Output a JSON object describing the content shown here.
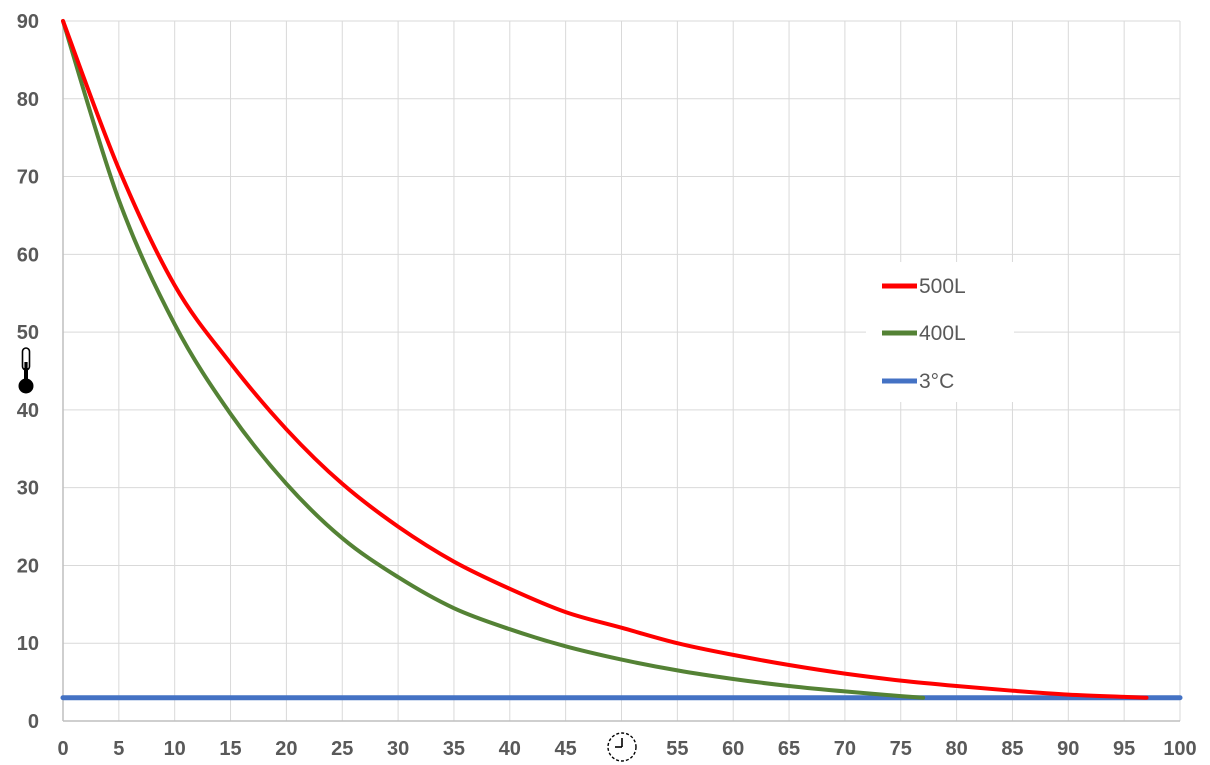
{
  "chart_data": {
    "type": "line",
    "title": "",
    "xlabel_icon": "clock-icon",
    "ylabel_icon": "thermometer-icon",
    "xlim": [
      0,
      100
    ],
    "ylim": [
      0,
      90
    ],
    "x_ticks": [
      "0",
      "5",
      "10",
      "15",
      "20",
      "25",
      "30",
      "35",
      "40",
      "45",
      "",
      "55",
      "60",
      "65",
      "70",
      "75",
      "80",
      "85",
      "90",
      "95",
      "100"
    ],
    "y_ticks": [
      "0",
      "10",
      "20",
      "30",
      "40",
      "50",
      "60",
      "70",
      "80",
      "90"
    ],
    "grid": true,
    "legend_position": "center-right",
    "series": [
      {
        "name": "500L",
        "color": "#ff0000",
        "x": [
          0,
          5,
          10,
          15,
          20,
          25,
          30,
          35,
          40,
          45,
          50,
          55,
          60,
          65,
          70,
          75,
          80,
          85,
          90,
          95,
          97
        ],
        "y": [
          90,
          71,
          56,
          46,
          37.5,
          30.5,
          25,
          20.5,
          17,
          14,
          12,
          10,
          8.5,
          7.2,
          6.1,
          5.2,
          4.5,
          3.9,
          3.4,
          3.1,
          3
        ]
      },
      {
        "name": "400L",
        "color": "#548235",
        "x": [
          0,
          5,
          10,
          15,
          20,
          25,
          30,
          35,
          40,
          45,
          50,
          55,
          60,
          65,
          70,
          75,
          77
        ],
        "y": [
          90,
          67,
          51,
          39.5,
          30.5,
          23.5,
          18.5,
          14.5,
          11.8,
          9.6,
          7.9,
          6.5,
          5.4,
          4.5,
          3.8,
          3.2,
          3
        ]
      },
      {
        "name": "3°C",
        "color": "#4472c4",
        "x": [
          0,
          100
        ],
        "y": [
          3,
          3
        ]
      }
    ]
  }
}
